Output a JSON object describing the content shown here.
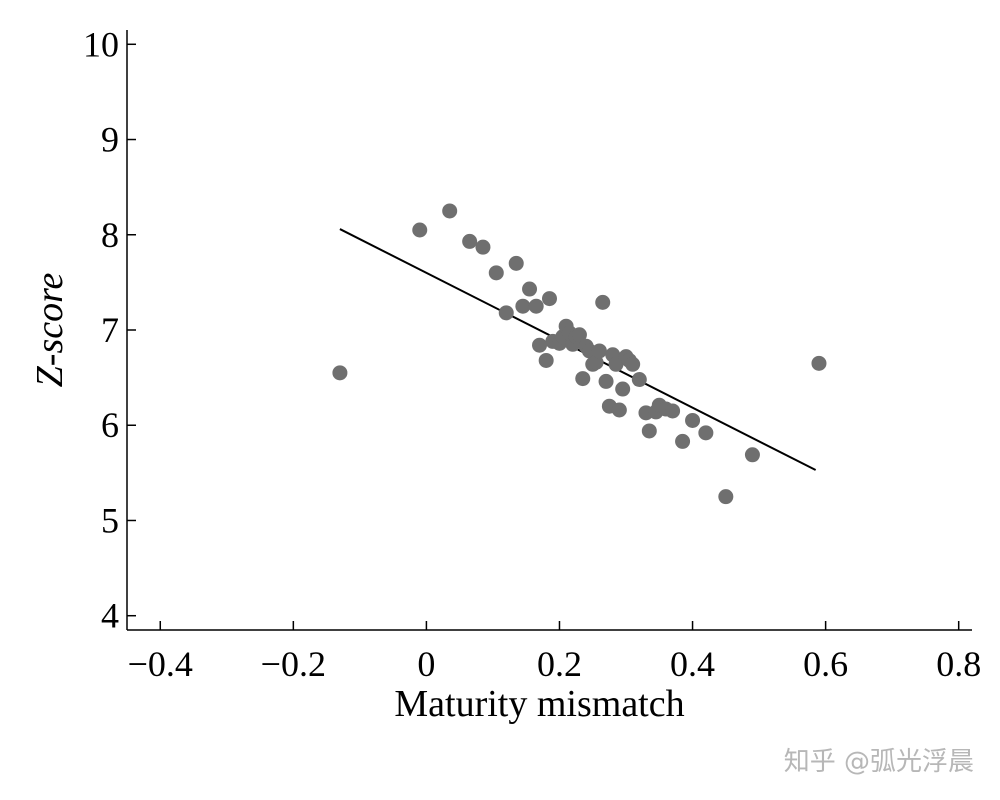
{
  "chart_data": {
    "type": "scatter",
    "xlabel": "Maturity mismatch",
    "ylabel": "Z-score",
    "xlim": [
      -0.45,
      0.82
    ],
    "ylim": [
      3.85,
      10.15
    ],
    "xticks": [
      -0.4,
      -0.2,
      0,
      0.2,
      0.4,
      0.6,
      0.8
    ],
    "xtick_labels": [
      "−0.4",
      "−0.2",
      "0",
      "0.2",
      "0.4",
      "0.6",
      "0.8"
    ],
    "yticks": [
      4,
      5,
      6,
      7,
      8,
      9,
      10
    ],
    "ytick_labels": [
      "4",
      "5",
      "6",
      "7",
      "8",
      "9",
      "10"
    ],
    "grid": false,
    "marker_color": "#6f6f6f",
    "line_color": "#000000",
    "points": [
      {
        "x": -0.13,
        "y": 6.55
      },
      {
        "x": -0.01,
        "y": 8.05
      },
      {
        "x": 0.035,
        "y": 8.25
      },
      {
        "x": 0.065,
        "y": 7.93
      },
      {
        "x": 0.085,
        "y": 7.87
      },
      {
        "x": 0.105,
        "y": 7.6
      },
      {
        "x": 0.12,
        "y": 7.18
      },
      {
        "x": 0.135,
        "y": 7.7
      },
      {
        "x": 0.145,
        "y": 7.25
      },
      {
        "x": 0.155,
        "y": 7.43
      },
      {
        "x": 0.165,
        "y": 7.25
      },
      {
        "x": 0.17,
        "y": 6.84
      },
      {
        "x": 0.18,
        "y": 6.68
      },
      {
        "x": 0.185,
        "y": 7.33
      },
      {
        "x": 0.19,
        "y": 6.88
      },
      {
        "x": 0.2,
        "y": 6.86
      },
      {
        "x": 0.205,
        "y": 6.93
      },
      {
        "x": 0.21,
        "y": 7.04
      },
      {
        "x": 0.215,
        "y": 6.97
      },
      {
        "x": 0.22,
        "y": 6.85
      },
      {
        "x": 0.225,
        "y": 6.93
      },
      {
        "x": 0.23,
        "y": 6.95
      },
      {
        "x": 0.235,
        "y": 6.49
      },
      {
        "x": 0.24,
        "y": 6.83
      },
      {
        "x": 0.245,
        "y": 6.78
      },
      {
        "x": 0.25,
        "y": 6.64
      },
      {
        "x": 0.255,
        "y": 6.66
      },
      {
        "x": 0.26,
        "y": 6.78
      },
      {
        "x": 0.265,
        "y": 7.29
      },
      {
        "x": 0.27,
        "y": 6.46
      },
      {
        "x": 0.275,
        "y": 6.2
      },
      {
        "x": 0.28,
        "y": 6.74
      },
      {
        "x": 0.285,
        "y": 6.64
      },
      {
        "x": 0.29,
        "y": 6.16
      },
      {
        "x": 0.295,
        "y": 6.38
      },
      {
        "x": 0.3,
        "y": 6.72
      },
      {
        "x": 0.305,
        "y": 6.68
      },
      {
        "x": 0.31,
        "y": 6.64
      },
      {
        "x": 0.32,
        "y": 6.48
      },
      {
        "x": 0.33,
        "y": 6.13
      },
      {
        "x": 0.335,
        "y": 5.94
      },
      {
        "x": 0.345,
        "y": 6.14
      },
      {
        "x": 0.35,
        "y": 6.21
      },
      {
        "x": 0.36,
        "y": 6.17
      },
      {
        "x": 0.37,
        "y": 6.15
      },
      {
        "x": 0.385,
        "y": 5.83
      },
      {
        "x": 0.4,
        "y": 6.05
      },
      {
        "x": 0.42,
        "y": 5.92
      },
      {
        "x": 0.45,
        "y": 5.25
      },
      {
        "x": 0.49,
        "y": 5.69
      },
      {
        "x": 0.59,
        "y": 6.65
      }
    ],
    "fit_line": {
      "x": [
        -0.13,
        0.585
      ],
      "y": [
        8.06,
        5.53
      ]
    }
  },
  "watermark": "知乎 @弧光浮晨"
}
